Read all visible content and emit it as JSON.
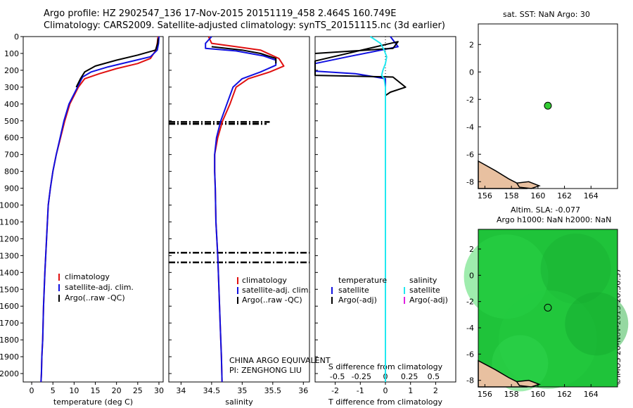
{
  "header": {
    "line1": "Argo profile: HZ 2902547_136 17-Nov-2015 20151119_458 2.464S 160.749E",
    "line2": "Climatology: CARS2009. Satellite-adjusted climatology: synTS_20151115.nc (3d earlier)"
  },
  "colors": {
    "climatology": "#e01010",
    "satellite": "#1010e0",
    "argo": "#000000",
    "sat_salinity": "#20e8f0",
    "argo_adj_salinity": "#e020e0",
    "map_land": "#e8c0a0",
    "map_sla": "#22c83a",
    "argo_marker": "#33cc33"
  },
  "stamp": "©IMOS 20-Nov-2015 20:56:57",
  "chart_data": [
    {
      "type": "line",
      "name": "temperature-profile",
      "xlabel": "temperature (deg C)",
      "ylabel": "",
      "xlim": [
        -2,
        31
      ],
      "ylim": [
        2050,
        0
      ],
      "xticks": [
        "0",
        "5",
        "10",
        "15",
        "20",
        "25",
        "30"
      ],
      "xtick_values": [
        0,
        5,
        10,
        15,
        20,
        25,
        30
      ],
      "yticks": [
        "0",
        "100",
        "200",
        "300",
        "400",
        "500",
        "600",
        "700",
        "800",
        "900",
        "1000",
        "1100",
        "1200",
        "1300",
        "1400",
        "1500",
        "1600",
        "1700",
        "1800",
        "1900",
        "2000"
      ],
      "ytick_values": [
        0,
        100,
        200,
        300,
        400,
        500,
        600,
        700,
        800,
        900,
        1000,
        1100,
        1200,
        1300,
        1400,
        1500,
        1600,
        1700,
        1800,
        1900,
        2000
      ],
      "legend": [
        "climatology",
        "satellite-adj. clim.",
        "Argo(..raw -QC)"
      ],
      "series": [
        {
          "name": "climatology",
          "color": "#e01010",
          "x": [
            29.8,
            29.6,
            29.3,
            28,
            25,
            20,
            16,
            12.5,
            11,
            10,
            9,
            7.8,
            6.8,
            5.8,
            5,
            4.4,
            3.9,
            3.5,
            3.1,
            2.8,
            2.6,
            2.4,
            2.3,
            2.2
          ],
          "y": [
            0,
            40,
            80,
            130,
            160,
            190,
            220,
            250,
            300,
            350,
            400,
            500,
            600,
            700,
            800,
            900,
            1000,
            1200,
            1400,
            1600,
            1800,
            1900,
            2000,
            2050
          ]
        },
        {
          "name": "satellite-adj. clim.",
          "color": "#1010e0",
          "x": [
            30,
            29.9,
            29.6,
            28,
            23,
            18,
            14,
            12,
            10.8,
            9.8,
            8.8,
            7.6,
            6.7,
            5.8,
            5,
            4.4,
            3.9,
            3.5,
            3.1,
            2.8,
            2.6,
            2.4,
            2.3,
            2.2
          ],
          "y": [
            0,
            40,
            80,
            120,
            150,
            180,
            210,
            240,
            300,
            350,
            400,
            500,
            600,
            700,
            800,
            900,
            1000,
            1200,
            1400,
            1600,
            1800,
            1900,
            2000,
            2050
          ]
        },
        {
          "name": "Argo(..raw -QC)",
          "color": "#000000",
          "x": [
            29.8,
            29.7,
            29.2,
            25,
            20,
            15,
            12.5,
            11.5,
            10.5
          ],
          "y": [
            10,
            40,
            80,
            110,
            140,
            175,
            210,
            250,
            300
          ]
        }
      ]
    },
    {
      "type": "line",
      "name": "salinity-profile",
      "xlabel": "salinity",
      "xlim": [
        33.8,
        36.1
      ],
      "ylim": [
        2050,
        0
      ],
      "xticks": [
        "34",
        "34.5",
        "35",
        "35.5",
        "36"
      ],
      "xtick_values": [
        34,
        34.5,
        35,
        35.5,
        36
      ],
      "legend": [
        "climatology",
        "satellite-adj. clim.",
        "Argo(..raw -QC)"
      ],
      "annotation_lines": [
        "CHINA ARGO EQUIVALENT",
        "PI: ZENGHONG LIU"
      ],
      "series": [
        {
          "name": "climatology",
          "color": "#e01010",
          "x": [
            34.45,
            34.5,
            34.9,
            35.3,
            35.6,
            35.68,
            35.45,
            35.1,
            34.9,
            34.8,
            34.68,
            34.6,
            34.55,
            34.55,
            34.56,
            34.57,
            34.6,
            34.62,
            34.64,
            34.66,
            34.67
          ],
          "y": [
            0,
            40,
            60,
            80,
            130,
            175,
            210,
            250,
            300,
            400,
            500,
            600,
            700,
            800,
            900,
            1100,
            1300,
            1500,
            1700,
            1900,
            2050
          ]
        },
        {
          "name": "satellite-adj. clim.",
          "color": "#1010e0",
          "x": [
            34.5,
            34.4,
            34.4,
            34.9,
            35.35,
            35.55,
            35.55,
            35.3,
            35.0,
            34.85,
            34.75,
            34.65,
            34.58,
            34.55,
            34.55,
            34.56,
            34.57,
            34.6,
            34.62,
            34.64,
            34.66,
            34.67
          ],
          "y": [
            0,
            40,
            70,
            85,
            115,
            140,
            170,
            210,
            250,
            300,
            400,
            500,
            600,
            700,
            800,
            900,
            1100,
            1300,
            1500,
            1700,
            1900,
            2050
          ]
        },
        {
          "name": "Argo(..raw -QC)",
          "color": "#000000",
          "x": [
            34.5,
            35.0,
            35.3,
            35.55,
            35.55
          ],
          "y": [
            60,
            80,
            100,
            130,
            160
          ]
        }
      ],
      "spikes": [
        {
          "y": 507,
          "x0": 33.8,
          "x1": 35.45
        },
        {
          "y": 518,
          "x0": 33.8,
          "x1": 35.4
        },
        {
          "y": 1283,
          "x0": 33.8,
          "x1": 36.1
        },
        {
          "y": 1340,
          "x0": 33.8,
          "x1": 36.1
        }
      ]
    },
    {
      "type": "line",
      "name": "difference-profile",
      "xlabel": "T difference from climatology",
      "xlabel2": "S difference from climatology",
      "xlim": [
        -2.8,
        2.8
      ],
      "ylim": [
        2050,
        0
      ],
      "xticks": [
        "-2",
        "-1",
        "0",
        "1",
        "2"
      ],
      "xtick_values": [
        -2,
        -1,
        0,
        1,
        2
      ],
      "xticks_s": [
        "-0.5",
        "-0.25",
        "0",
        "0.25",
        "0.5"
      ],
      "xtick_values_s": [
        -0.5,
        -0.25,
        0,
        0.25,
        0.5
      ],
      "legend_temperature_title": "temperature",
      "legend_salinity_title": "salinity",
      "legend_temperature": [
        "satellite",
        "Argo(-adj)"
      ],
      "legend_salinity": [
        "satellite",
        "Argo(-adj)"
      ],
      "series": [
        {
          "name": "T satellite",
          "color": "#1010e0",
          "x": [
            0.2,
            0.5,
            -1.5,
            -2.8,
            -2.8,
            -1.2,
            0,
            0,
            0,
            0,
            0,
            0,
            0,
            0
          ],
          "y": [
            0,
            60,
            120,
            160,
            205,
            220,
            250,
            300,
            500,
            800,
            1100,
            1400,
            1800,
            2050
          ]
        },
        {
          "name": "T Argo(-adj)",
          "color": "#000000",
          "x": [
            -2.8,
            0.3,
            0.5,
            -2.8,
            -2.8,
            -2.8,
            0.3,
            0.8,
            0.2,
            0,
            0
          ],
          "y": [
            100,
            70,
            30,
            145,
            190,
            230,
            240,
            300,
            330,
            350,
            400
          ]
        },
        {
          "name": "S satellite",
          "color": "#20e8f0",
          "x": [
            -0.6,
            -0.2,
            -0.05,
            0.05,
            0,
            -0.1,
            -0.15,
            -0.05,
            0,
            0,
            0,
            0,
            0
          ],
          "y": [
            0,
            40,
            80,
            120,
            160,
            200,
            230,
            250,
            300,
            600,
            1000,
            1500,
            2050
          ]
        }
      ]
    },
    {
      "type": "scatter",
      "name": "sst-map",
      "title": "sat. SST: NaN Argo: 30",
      "xlim": [
        155.5,
        166
      ],
      "ylim": [
        -8.5,
        3.5
      ],
      "xticks": [
        "156",
        "158",
        "160",
        "162",
        "164"
      ],
      "xtick_values": [
        156,
        158,
        160,
        162,
        164
      ],
      "yticks": [
        "2",
        "0",
        "-2",
        "-4",
        "-6",
        "-8"
      ],
      "ytick_values": [
        2,
        0,
        -2,
        -4,
        -6,
        -8
      ],
      "points": [
        {
          "x": 160.749,
          "y": -2.464
        }
      ]
    },
    {
      "type": "heatmap",
      "name": "sla-map",
      "title": "Altim. SLA: -0.077",
      "subtitle": "Argo h1000: NaN h2000: NaN",
      "xlim": [
        155.5,
        166
      ],
      "ylim": [
        -8.5,
        3.5
      ],
      "xticks": [
        "156",
        "158",
        "160",
        "162",
        "164"
      ],
      "xtick_values": [
        156,
        158,
        160,
        162,
        164
      ],
      "yticks": [
        "2",
        "0",
        "-2",
        "-4",
        "-6",
        "-8"
      ],
      "ytick_values": [
        2,
        0,
        -2,
        -4,
        -6,
        -8
      ],
      "points": [
        {
          "x": 160.749,
          "y": -2.464
        }
      ]
    }
  ]
}
